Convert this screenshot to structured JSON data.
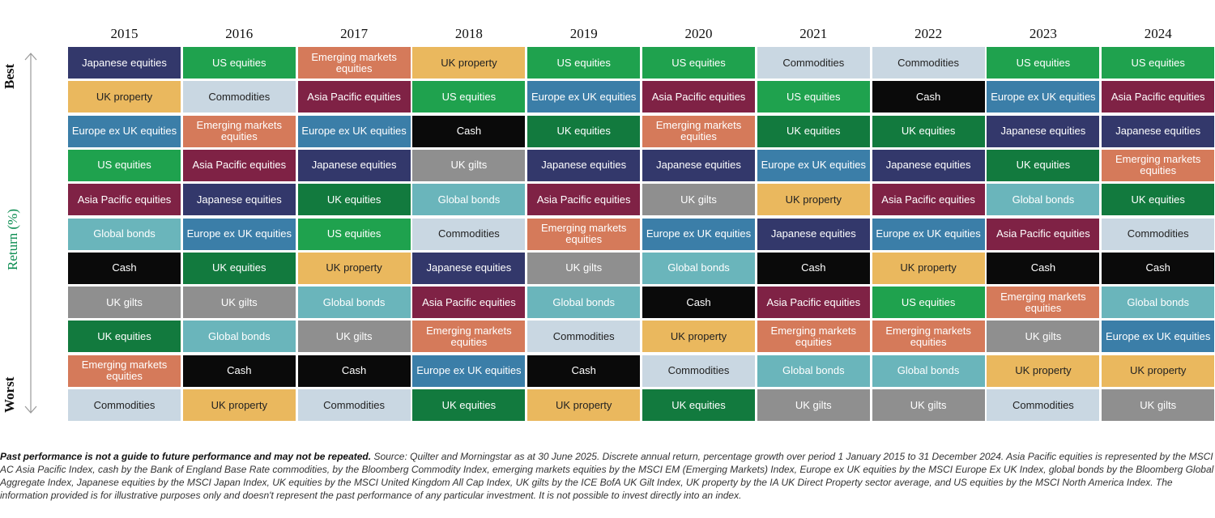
{
  "chart_data": {
    "type": "table",
    "title": "",
    "ylabel": "Return (%)",
    "top_label": "Best",
    "bottom_label": "Worst",
    "years": [
      "2015",
      "2016",
      "2017",
      "2018",
      "2019",
      "2020",
      "2021",
      "2022",
      "2023",
      "2024"
    ],
    "rankings": [
      [
        "Japanese equities",
        "UK property",
        "Europe ex UK equities",
        "US equities",
        "Asia Pacific equities",
        "Global bonds",
        "Cash",
        "UK gilts",
        "UK equities",
        "Emerging markets equities",
        "Commodities"
      ],
      [
        "US equities",
        "Commodities",
        "Emerging markets equities",
        "Asia Pacific equities",
        "Japanese equities",
        "Europe ex UK equities",
        "UK equities",
        "UK gilts",
        "Global bonds",
        "Cash",
        "UK property"
      ],
      [
        "Emerging markets equities",
        "Asia Pacific equities",
        "Europe ex UK equities",
        "Japanese equities",
        "UK equities",
        "US equities",
        "UK property",
        "Global bonds",
        "UK gilts",
        "Cash",
        "Commodities"
      ],
      [
        "UK property",
        "US equities",
        "Cash",
        "UK gilts",
        "Global bonds",
        "Commodities",
        "Japanese equities",
        "Asia Pacific equities",
        "Emerging markets equities",
        "Europe ex UK equities",
        "UK equities"
      ],
      [
        "US equities",
        "Europe ex UK equities",
        "UK equities",
        "Japanese equities",
        "Asia Pacific equities",
        "Emerging markets equities",
        "UK gilts",
        "Global bonds",
        "Commodities",
        "Cash",
        "UK property"
      ],
      [
        "US equities",
        "Asia Pacific equities",
        "Emerging markets equities",
        "Japanese equities",
        "UK gilts",
        "Europe ex UK equities",
        "Global bonds",
        "Cash",
        "UK property",
        "Commodities",
        "UK equities"
      ],
      [
        "Commodities",
        "US equities",
        "UK equities",
        "Europe ex UK equities",
        "UK property",
        "Japanese equities",
        "Cash",
        "Asia Pacific equities",
        "Emerging markets equities",
        "Global bonds",
        "UK gilts"
      ],
      [
        "Commodities",
        "Cash",
        "UK equities",
        "Japanese equities",
        "Asia Pacific equities",
        "Europe ex UK equities",
        "UK property",
        "US equities",
        "Emerging markets equities",
        "Global bonds",
        "UK gilts"
      ],
      [
        "US equities",
        "Europe ex UK equities",
        "Japanese equities",
        "UK equities",
        "Global bonds",
        "Asia Pacific equities",
        "Cash",
        "Emerging markets equities",
        "UK gilts",
        "UK property",
        "Commodities"
      ],
      [
        "US equities",
        "Asia Pacific equities",
        "Japanese equities",
        "Emerging markets equities",
        "UK equities",
        "Commodities",
        "Cash",
        "Global bonds",
        "Europe ex UK equities",
        "UK property",
        "UK gilts"
      ]
    ],
    "asset_colors": {
      "Japanese equities": "#33386b",
      "UK property": "#eab85e",
      "Europe ex UK equities": "#3b7ea8",
      "US equities": "#1fa24e",
      "Asia Pacific equities": "#7f2245",
      "Global bonds": "#6ab5bb",
      "Cash": "#0a0a0a",
      "UK gilts": "#8f8f8f",
      "UK equities": "#127a3e",
      "Emerging markets equities": "#d57a5a",
      "Commodities": "#c9d7e2"
    },
    "dark_text_assets": [
      "UK property",
      "Commodities"
    ]
  },
  "footnote": {
    "bold": "Past performance is not a guide to future performance and may not be repeated.",
    "text": " Source: Quilter and Morningstar as at 30 June 2025. Discrete annual return, percentage growth over period 1 January 2015 to 31 December 2024. Asia Pacific equities is represented by the MSCI AC Asia Pacific Index, cash by the Bank of England Base Rate commodities, by the Bloomberg Commodity Index, emerging markets equities by the MSCI EM (Emerging Markets) Index, Europe ex UK equities by the MSCI Europe Ex UK Index, global bonds by the Bloomberg Global Aggregate Index, Japanese equities by the MSCI Japan Index, UK equities by the MSCI United Kingdom All Cap Index, UK gilts by the ICE BofA UK Gilt Index, UK property by the IA UK Direct Property sector average, and US equities by the MSCI North America Index. The information provided is for illustrative purposes only and doesn't represent the past performance of any particular investment. It is not possible to invest directly into an index."
  }
}
